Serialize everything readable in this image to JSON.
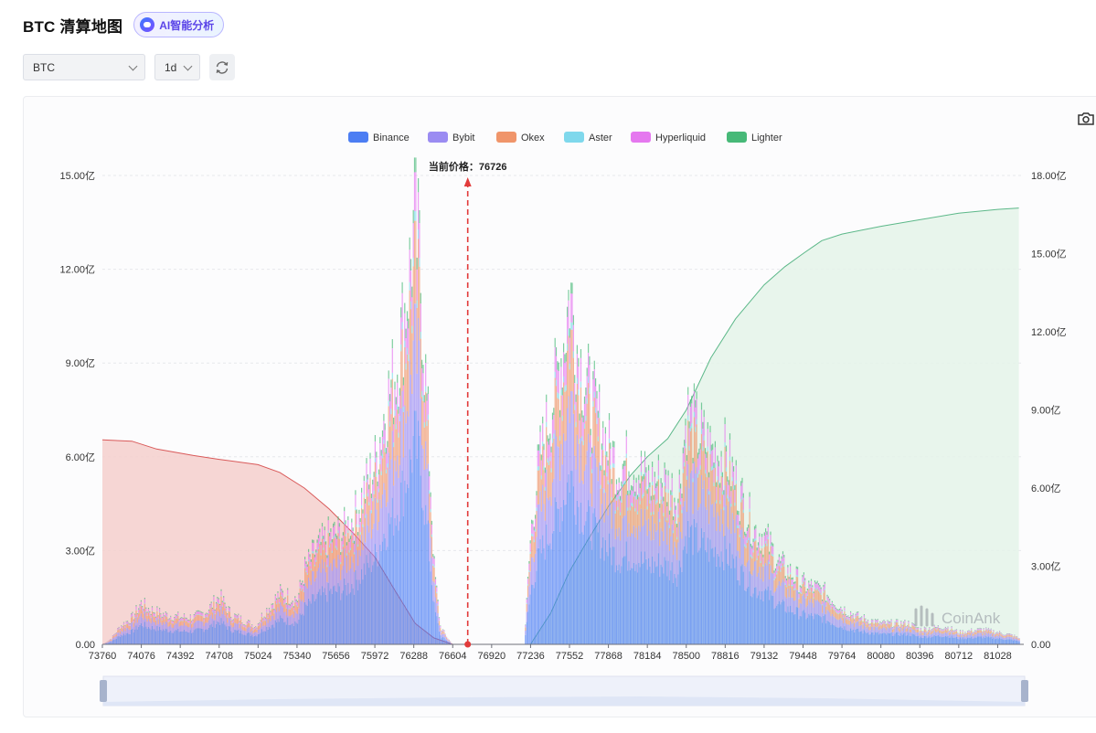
{
  "header": {
    "title": "BTC 清算地图",
    "ai_badge": "AI智能分析"
  },
  "controls": {
    "coin_select": "BTC",
    "period_select": "1d"
  },
  "colors": {
    "Binance": "#4c7ef3",
    "Bybit": "#9b8cf2",
    "Okex": "#f0956a",
    "Aster": "#7fd8ec",
    "Hyperliquid": "#e578ef",
    "Lighter": "#47b978",
    "short_cumulative_line": "#d95a5a",
    "short_cumulative_fill": "#f4cfcd",
    "long_cumulative_line": "#5cb889",
    "long_cumulative_fill": "#e4f3e9",
    "current_price_line": "#e23b3b"
  },
  "watermark": "CoinAnk",
  "chart_data": {
    "type": "bar",
    "stacked": true,
    "legend": [
      "Binance",
      "Bybit",
      "Okex",
      "Aster",
      "Hyperliquid",
      "Lighter"
    ],
    "legend_position": "top-center",
    "current_price": 76726,
    "current_price_label": "当前价格：76726",
    "x_ticks": [
      "73760",
      "74076",
      "74392",
      "74708",
      "75024",
      "75340",
      "75656",
      "75972",
      "76288",
      "76604",
      "76920",
      "77236",
      "77552",
      "77868",
      "78184",
      "78500",
      "78816",
      "79132",
      "79448",
      "79764",
      "80080",
      "80396",
      "80712",
      "81028"
    ],
    "xlim": [
      73760,
      81240
    ],
    "y_left": {
      "ticks": [
        "0.00",
        "3.00亿",
        "6.00亿",
        "9.00亿",
        "12.00亿",
        "15.00亿"
      ],
      "range": [
        0,
        15
      ]
    },
    "y_right": {
      "ticks": [
        "0.00",
        "3.00亿",
        "6.00亿",
        "9.00亿",
        "12.00亿",
        "15.00亿",
        "18.00亿"
      ],
      "range": [
        0,
        18
      ]
    },
    "grid": true,
    "bar_total_profile": [
      [
        73760,
        0.0
      ],
      [
        73830,
        0.2
      ],
      [
        73900,
        0.6
      ],
      [
        74000,
        0.9
      ],
      [
        74076,
        1.4
      ],
      [
        74120,
        1.2
      ],
      [
        74250,
        1.0
      ],
      [
        74392,
        0.9
      ],
      [
        74500,
        0.9
      ],
      [
        74600,
        1.1
      ],
      [
        74708,
        1.6
      ],
      [
        74800,
        1.0
      ],
      [
        74900,
        0.8
      ],
      [
        75000,
        0.6
      ],
      [
        75060,
        1.0
      ],
      [
        75200,
        1.7
      ],
      [
        75340,
        1.5
      ],
      [
        75400,
        2.5
      ],
      [
        75500,
        3.2
      ],
      [
        75600,
        3.6
      ],
      [
        75700,
        3.7
      ],
      [
        75800,
        4.2
      ],
      [
        75900,
        5.3
      ],
      [
        75972,
        6.0
      ],
      [
        76050,
        7.8
      ],
      [
        76150,
        9.3
      ],
      [
        76250,
        12.3
      ],
      [
        76288,
        14.0
      ],
      [
        76330,
        12.8
      ],
      [
        76400,
        7.2
      ],
      [
        76450,
        2.5
      ],
      [
        76500,
        0.6
      ],
      [
        76560,
        0.2
      ],
      [
        76600,
        0.0
      ],
      [
        77180,
        0.0
      ],
      [
        77236,
        3.8
      ],
      [
        77300,
        6.0
      ],
      [
        77420,
        8.3
      ],
      [
        77500,
        10.0
      ],
      [
        77552,
        11.8
      ],
      [
        77620,
        9.6
      ],
      [
        77700,
        8.4
      ],
      [
        77868,
        6.5
      ],
      [
        77950,
        5.9
      ],
      [
        78050,
        6.1
      ],
      [
        78184,
        5.4
      ],
      [
        78300,
        5.5
      ],
      [
        78430,
        4.9
      ],
      [
        78500,
        7.7
      ],
      [
        78600,
        7.0
      ],
      [
        78700,
        6.4
      ],
      [
        78816,
        6.3
      ],
      [
        78950,
        4.8
      ],
      [
        79050,
        3.8
      ],
      [
        79132,
        3.6
      ],
      [
        79250,
        2.7
      ],
      [
        79448,
        2.0
      ],
      [
        79600,
        1.8
      ],
      [
        79764,
        1.2
      ],
      [
        79900,
        0.9
      ],
      [
        80080,
        0.7
      ],
      [
        80300,
        0.7
      ],
      [
        80396,
        0.5
      ],
      [
        80600,
        0.6
      ],
      [
        80712,
        0.4
      ],
      [
        80900,
        0.5
      ],
      [
        81028,
        0.4
      ],
      [
        81150,
        0.3
      ],
      [
        81200,
        0.2
      ]
    ],
    "short_cumulative_series": {
      "axis": "right",
      "points": [
        [
          73760,
          7.85
        ],
        [
          74000,
          7.8
        ],
        [
          74200,
          7.5
        ],
        [
          74500,
          7.25
        ],
        [
          74708,
          7.1
        ],
        [
          75024,
          6.9
        ],
        [
          75200,
          6.6
        ],
        [
          75400,
          6.0
        ],
        [
          75600,
          5.2
        ],
        [
          75800,
          4.25
        ],
        [
          75972,
          3.35
        ],
        [
          76150,
          1.95
        ],
        [
          76300,
          0.8
        ],
        [
          76450,
          0.25
        ],
        [
          76604,
          0.0
        ]
      ]
    },
    "long_cumulative_series": {
      "axis": "right",
      "points": [
        [
          77236,
          0.0
        ],
        [
          77400,
          1.2
        ],
        [
          77552,
          2.8
        ],
        [
          77700,
          4.0
        ],
        [
          77868,
          5.3
        ],
        [
          78050,
          6.5
        ],
        [
          78184,
          7.2
        ],
        [
          78350,
          7.9
        ],
        [
          78500,
          9.0
        ],
        [
          78700,
          11.0
        ],
        [
          78900,
          12.5
        ],
        [
          79132,
          13.8
        ],
        [
          79300,
          14.5
        ],
        [
          79448,
          15.0
        ],
        [
          79600,
          15.5
        ],
        [
          79764,
          15.75
        ],
        [
          80080,
          16.05
        ],
        [
          80396,
          16.3
        ],
        [
          80712,
          16.55
        ],
        [
          81028,
          16.7
        ],
        [
          81200,
          16.75
        ]
      ]
    }
  }
}
